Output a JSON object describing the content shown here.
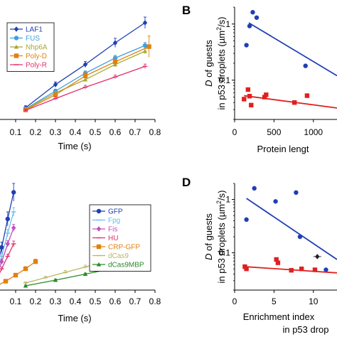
{
  "panels": {
    "B": {
      "label": "B"
    },
    "D": {
      "label": "D"
    }
  },
  "chart_data": [
    {
      "id": "A",
      "type": "line",
      "title": "",
      "xlabel": "Time (s)",
      "ylabel": "",
      "xlim": [
        0.0,
        0.8
      ],
      "ylim": [
        0.0,
        3.0
      ],
      "xticks": [
        "0.1",
        "0.2",
        "0.3",
        "0.4",
        "0.5",
        "0.6",
        "0.7",
        "0.8"
      ],
      "xtick_values": [
        0.1,
        0.2,
        0.3,
        0.4,
        0.5,
        0.6,
        0.7,
        0.8
      ],
      "legend": "top-left",
      "series": [
        {
          "name": "LAF1",
          "color": "#1f3fb4",
          "marker": "diamond",
          "x": [
            0.15,
            0.3,
            0.45,
            0.6,
            0.75
          ],
          "y": [
            0.31,
            0.92,
            1.45,
            2.02,
            2.55
          ],
          "err": [
            0.05,
            0.07,
            0.08,
            0.12,
            0.15
          ]
        },
        {
          "name": "FUS",
          "color": "#3fa0e0",
          "marker": "dot",
          "x": [
            0.15,
            0.3,
            0.45,
            0.6,
            0.75
          ],
          "y": [
            0.28,
            0.75,
            1.22,
            1.62,
            1.95
          ],
          "err": [
            0.04,
            0.05,
            0.06,
            0.07,
            0.08
          ]
        },
        {
          "name": "Nhp6A",
          "color": "#a8a830",
          "marker": "triangle",
          "x": [
            0.15,
            0.3,
            0.45,
            0.6,
            0.75
          ],
          "y": [
            0.27,
            0.7,
            1.05,
            1.45,
            1.8
          ],
          "err": [
            0.03,
            0.04,
            0.05,
            0.06,
            0.07
          ]
        },
        {
          "name": "Poly-D",
          "color": "#e08010",
          "marker": "square",
          "x": [
            0.15,
            0.3,
            0.45,
            0.6,
            0.77
          ],
          "y": [
            0.25,
            0.65,
            1.15,
            1.52,
            1.92
          ],
          "err": [
            0.03,
            0.05,
            0.1,
            0.12,
            0.28
          ]
        },
        {
          "name": "Poly-R",
          "color": "#e0306a",
          "marker": "dash",
          "x": [
            0.15,
            0.3,
            0.45,
            0.6,
            0.75
          ],
          "y": [
            0.24,
            0.55,
            0.85,
            1.12,
            1.4
          ],
          "err": [
            0.03,
            0.04,
            0.05,
            0.05,
            0.06
          ]
        }
      ]
    },
    {
      "id": "B",
      "type": "scatter",
      "title": "",
      "xlabel": "Protein lengt",
      "ylabel": "D of guests in p53 droplets (µm²/s)",
      "xscale": "linear",
      "yscale": "log",
      "xlim": [
        0,
        1300
      ],
      "ylim": [
        0.02,
        2.0
      ],
      "xticks": [
        "0",
        "500",
        "1000"
      ],
      "xtick_values": [
        0,
        500,
        1000
      ],
      "yticks": [
        "0.1",
        "1"
      ],
      "ytick_values": [
        0.1,
        1
      ],
      "series": [
        {
          "color": "#1f3fb4",
          "marker": "dot",
          "x": [
            150,
            190,
            230,
            280,
            900
          ],
          "y": [
            0.42,
            0.92,
            1.62,
            1.3,
            0.18
          ],
          "fit": {
            "x": [
              180,
              1300
            ],
            "y": [
              1.05,
              0.12
            ]
          }
        },
        {
          "color": "#e02020",
          "marker": "square",
          "x": [
            120,
            170,
            190,
            210,
            380,
            400,
            760,
            920
          ],
          "y": [
            0.046,
            0.068,
            0.052,
            0.036,
            0.05,
            0.055,
            0.04,
            0.053
          ],
          "fit": {
            "x": [
              120,
              1300
            ],
            "y": [
              0.053,
              0.032
            ]
          }
        }
      ]
    },
    {
      "id": "C",
      "type": "line",
      "title": "",
      "xlabel": "Time (s)",
      "ylabel": "",
      "xlim": [
        0.0,
        0.8
      ],
      "ylim": [
        0.0,
        3.0
      ],
      "xticks": [
        "0.1",
        "0.2",
        "0.3",
        "0.4",
        "0.5",
        "0.6",
        "0.7",
        "0.8"
      ],
      "xtick_values": [
        0.1,
        0.2,
        0.3,
        0.4,
        0.5,
        0.6,
        0.7,
        0.8
      ],
      "legend": "top-right",
      "series": [
        {
          "name": "GFP",
          "color": "#1f3fb4",
          "marker": "dot",
          "x": [
            0.0,
            0.03,
            0.06,
            0.09
          ],
          "y": [
            0.5,
            1.2,
            2.0,
            2.75
          ],
          "err": [
            0.1,
            0.15,
            0.2,
            0.25
          ]
        },
        {
          "name": "Fpg",
          "color": "#68c0e8",
          "marker": "dash",
          "x": [
            0.0,
            0.03,
            0.06,
            0.09
          ],
          "y": [
            0.35,
            0.95,
            1.6,
            2.2
          ],
          "err": [
            0.05,
            0.08,
            0.1,
            0.12
          ]
        },
        {
          "name": "Fis",
          "color": "#c050c0",
          "marker": "diamond",
          "x": [
            0.0,
            0.03,
            0.06,
            0.09
          ],
          "y": [
            0.3,
            0.8,
            1.3,
            1.75
          ],
          "err": [
            0.05,
            0.07,
            0.09,
            0.1
          ]
        },
        {
          "name": "HU",
          "color": "#e0306a",
          "marker": "dash",
          "x": [
            0.0,
            0.03,
            0.06,
            0.09
          ],
          "y": [
            0.25,
            0.6,
            0.95,
            1.3
          ],
          "err": [
            0.04,
            0.05,
            0.06,
            0.08
          ]
        },
        {
          "name": "CRP-GFP",
          "color": "#e08010",
          "marker": "square",
          "x": [
            0.0,
            0.05,
            0.1,
            0.15,
            0.2
          ],
          "y": [
            0.1,
            0.25,
            0.42,
            0.6,
            0.8
          ],
          "err": [
            0.02,
            0.04,
            0.05,
            0.06,
            0.07
          ]
        },
        {
          "name": "dCas9",
          "color": "#b8b860",
          "marker": "dash",
          "x": [
            0.15,
            0.25,
            0.35,
            0.45,
            0.53
          ],
          "y": [
            0.2,
            0.35,
            0.5,
            0.65,
            0.78
          ],
          "err": [
            0.03,
            0.04,
            0.05,
            0.05,
            0.06
          ]
        },
        {
          "name": "dCas9MBP",
          "color": "#2a8a2a",
          "marker": "triangle",
          "x": [
            0.15,
            0.3,
            0.45,
            0.6,
            0.75
          ],
          "y": [
            0.12,
            0.28,
            0.45,
            0.62,
            0.8
          ],
          "err": [
            0.02,
            0.03,
            0.03,
            0.04,
            0.04
          ]
        }
      ]
    },
    {
      "id": "D",
      "type": "scatter",
      "title": "",
      "xlabel": "Enrichment index",
      "xlabel2": "in p53 drop",
      "ylabel": "D of guests in p53 droplets (µm²/s)",
      "xscale": "linear",
      "yscale": "log",
      "xlim": [
        0,
        13
      ],
      "ylim": [
        0.02,
        2.0
      ],
      "xticks": [
        "0",
        "5",
        "10"
      ],
      "xtick_values": [
        0,
        5,
        10
      ],
      "yticks": [
        "0.1",
        "1"
      ],
      "ytick_values": [
        0.1,
        1
      ],
      "series": [
        {
          "color": "#1f3fb4",
          "marker": "dot",
          "x": [
            1.5,
            2.5,
            5.2,
            7.8,
            8.3,
            11.6
          ],
          "y": [
            0.42,
            1.62,
            0.92,
            1.35,
            0.2,
            0.048
          ],
          "fit": {
            "x": [
              1.5,
              13
            ],
            "y": [
              1.05,
              0.075
            ]
          }
        },
        {
          "color": "#e02020",
          "marker": "square",
          "x": [
            1.3,
            1.5,
            5.3,
            5.5,
            7.2,
            8.5,
            10.2
          ],
          "y": [
            0.055,
            0.05,
            0.075,
            0.065,
            0.047,
            0.05,
            0.048
          ],
          "fit": {
            "x": [
              1.3,
              13
            ],
            "y": [
              0.055,
              0.042
            ]
          }
        },
        {
          "color": "#222222",
          "marker": "diamond",
          "x": [
            10.5
          ],
          "y": [
            0.085
          ],
          "xerr": [
            0.5
          ]
        }
      ]
    }
  ]
}
